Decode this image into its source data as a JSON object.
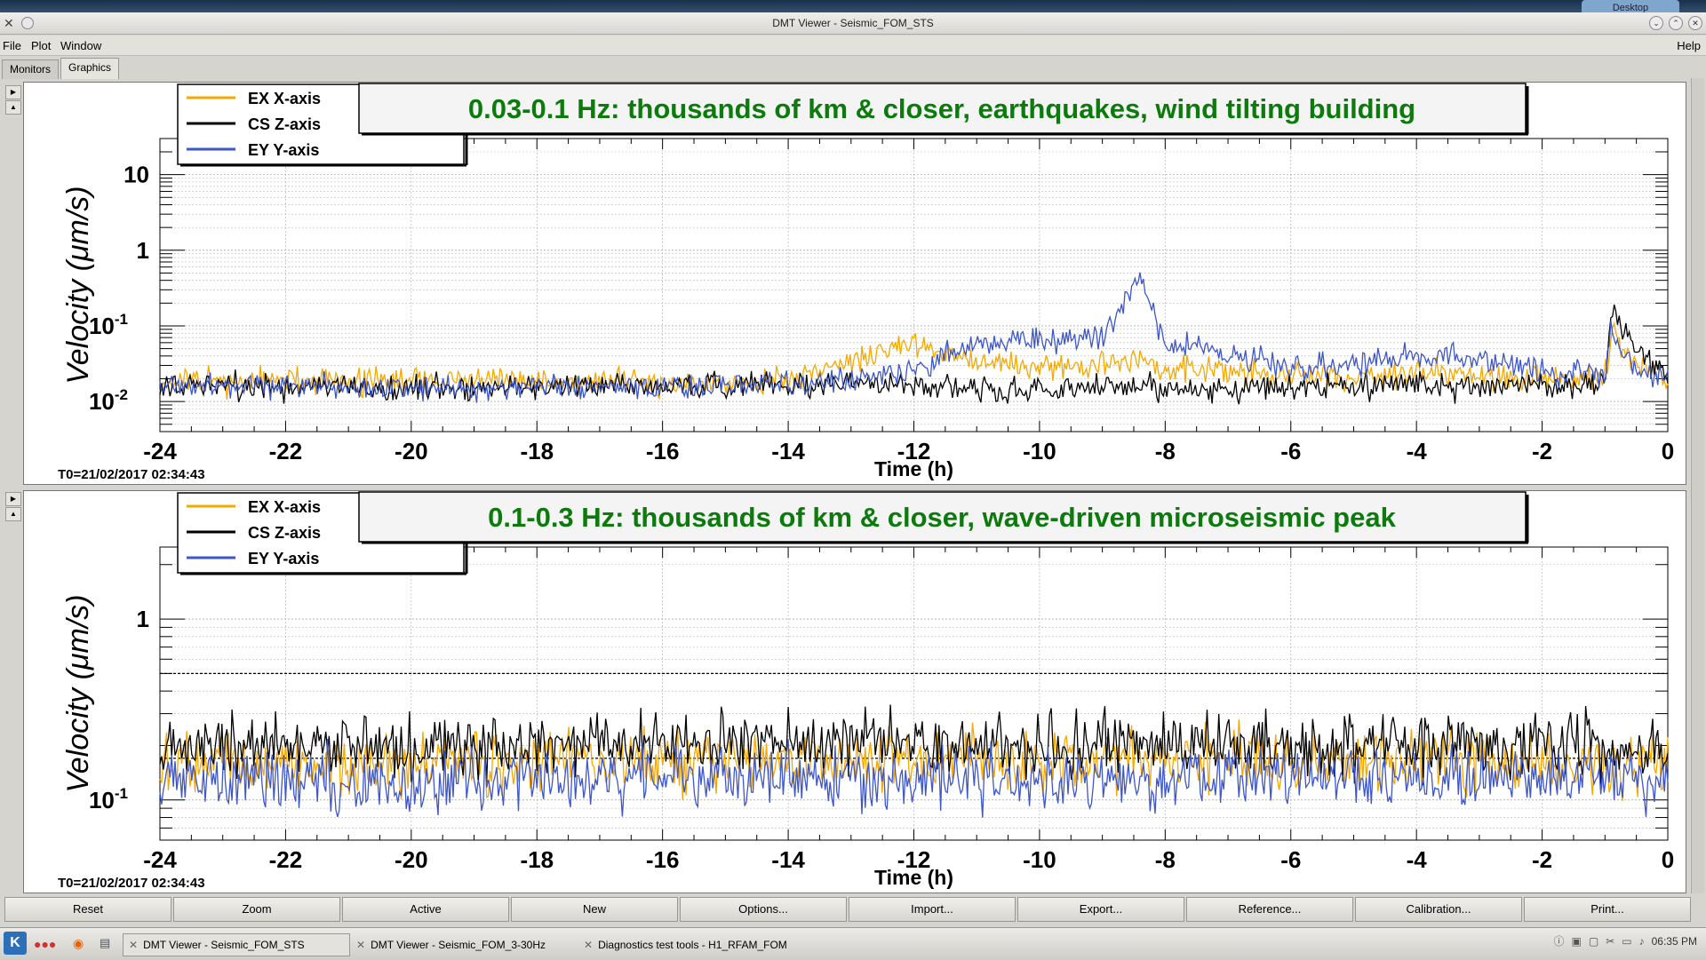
{
  "window": {
    "title": "DMT Viewer - Seismic_FOM_STS",
    "desktop_label": "Desktop"
  },
  "menu": {
    "file": "File",
    "plot": "Plot",
    "window": "Window",
    "help": "Help"
  },
  "tabs": [
    "Monitors",
    "Graphics"
  ],
  "active_tab": "Graphics",
  "toolbar": [
    "Reset",
    "Zoom",
    "Active",
    "New",
    "Options...",
    "Import...",
    "Export...",
    "Reference...",
    "Calibration...",
    "Print..."
  ],
  "taskbar": {
    "items": [
      "DMT Viewer - Seismic_FOM_STS",
      "DMT Viewer - Seismic_FOM_3-30Hz",
      "Diagnostics test tools - H1_RFAM_FOM"
    ],
    "clock": "06:35 PM"
  },
  "colors": {
    "ex": "#f5a800",
    "cs": "#000000",
    "ey": "#3d56c8",
    "title_text": "#0c7a0c"
  },
  "chart_data": [
    {
      "type": "line",
      "title": "0.03-0.1 Hz: thousands of km & closer, earthquakes, wind tilting building",
      "xlabel": "Time (h)",
      "ylabel": "Velocity  (μm/s)",
      "t0_label": "T0=21/02/2017 02:34:43",
      "log_y": true,
      "xlim": [
        -24,
        0
      ],
      "ylim": [
        0.004,
        30
      ],
      "x_ticks": [
        "-24",
        "-22",
        "-20",
        "-18",
        "-16",
        "-14",
        "-12",
        "-10",
        "-8",
        "-6",
        "-4",
        "-2",
        "0"
      ],
      "y_ticks": [
        {
          "value": 0.01,
          "label": "10",
          "exp": "-2"
        },
        {
          "value": 0.1,
          "label": "10",
          "exp": "-1"
        },
        {
          "value": 1,
          "label": "1",
          "exp": ""
        },
        {
          "value": 10,
          "label": "10",
          "exp": ""
        }
      ],
      "x": [
        -24,
        -22,
        -20,
        -18,
        -16,
        -14,
        -13,
        -12,
        -11,
        -10,
        -9,
        -8.4,
        -8,
        -7,
        -6,
        -5,
        -4,
        -3,
        -2,
        -1,
        -0.9,
        -0.5,
        0
      ],
      "series": [
        {
          "name": "EX X-axis",
          "color": "#f5a800",
          "values": [
            0.018,
            0.019,
            0.019,
            0.019,
            0.018,
            0.019,
            0.035,
            0.06,
            0.035,
            0.028,
            0.03,
            0.035,
            0.028,
            0.025,
            0.022,
            0.022,
            0.024,
            0.022,
            0.02,
            0.02,
            0.08,
            0.03,
            0.02
          ]
        },
        {
          "name": "CS Z-axis",
          "color": "#000000",
          "values": [
            0.016,
            0.016,
            0.015,
            0.016,
            0.016,
            0.016,
            0.017,
            0.016,
            0.015,
            0.014,
            0.016,
            0.016,
            0.016,
            0.015,
            0.016,
            0.016,
            0.016,
            0.016,
            0.016,
            0.018,
            0.15,
            0.05,
            0.02
          ]
        },
        {
          "name": "EY Y-axis",
          "color": "#3d56c8",
          "values": [
            0.016,
            0.016,
            0.015,
            0.016,
            0.016,
            0.017,
            0.02,
            0.025,
            0.06,
            0.06,
            0.07,
            0.4,
            0.06,
            0.04,
            0.03,
            0.03,
            0.04,
            0.035,
            0.025,
            0.022,
            0.08,
            0.025,
            0.02
          ]
        }
      ]
    },
    {
      "type": "line",
      "title": "0.1-0.3 Hz: thousands of km & closer, wave-driven microseismic peak",
      "xlabel": "Time (h)",
      "ylabel": "Velocity  (μm/s)",
      "t0_label": "T0=21/02/2017 02:34:43",
      "log_y": true,
      "xlim": [
        -24,
        0
      ],
      "ylim": [
        0.06,
        2.5
      ],
      "x_ticks": [
        "-24",
        "-22",
        "-20",
        "-18",
        "-16",
        "-14",
        "-12",
        "-10",
        "-8",
        "-6",
        "-4",
        "-2",
        "0"
      ],
      "y_ticks": [
        {
          "value": 0.1,
          "label": "10",
          "exp": "-1"
        },
        {
          "value": 1,
          "label": "1",
          "exp": ""
        }
      ],
      "hlines": [
        0.5,
        0.17
      ],
      "x": [
        -24,
        -22,
        -20,
        -18,
        -16,
        -14,
        -12,
        -10,
        -8,
        -6,
        -4,
        -2,
        0
      ],
      "series": [
        {
          "name": "EX X-axis",
          "color": "#f5a800",
          "values": [
            0.16,
            0.16,
            0.16,
            0.16,
            0.17,
            0.17,
            0.17,
            0.16,
            0.17,
            0.17,
            0.17,
            0.16,
            0.16
          ]
        },
        {
          "name": "CS Z-axis",
          "color": "#000000",
          "values": [
            0.19,
            0.2,
            0.19,
            0.2,
            0.21,
            0.21,
            0.2,
            0.2,
            0.21,
            0.2,
            0.2,
            0.2,
            0.19
          ]
        },
        {
          "name": "EY Y-axis",
          "color": "#3d56c8",
          "values": [
            0.13,
            0.13,
            0.12,
            0.13,
            0.13,
            0.13,
            0.13,
            0.13,
            0.13,
            0.13,
            0.13,
            0.13,
            0.13
          ]
        }
      ]
    }
  ]
}
